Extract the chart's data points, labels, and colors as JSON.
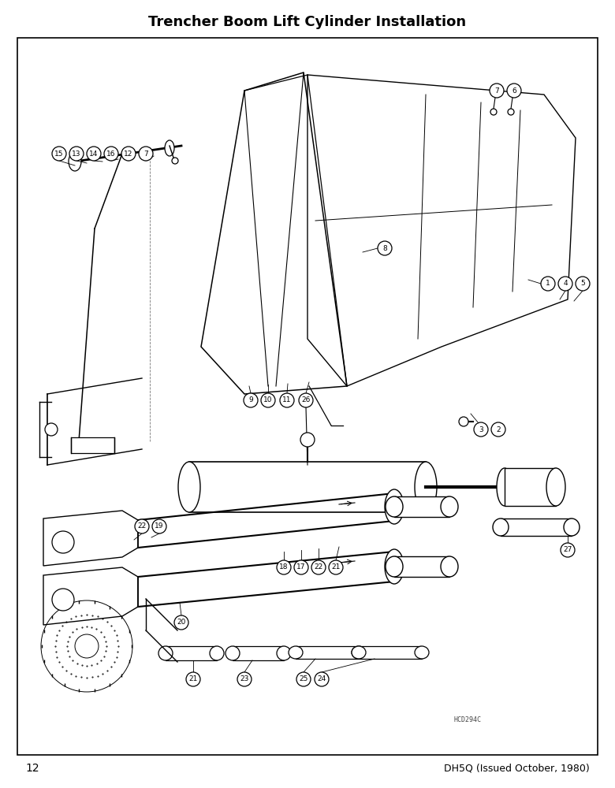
{
  "title": "Trencher Boom Lift Cylinder Installation",
  "page_number": "12",
  "doc_ref": "DH5Q (Issued October, 1980)",
  "drawing_code": "HCD294C",
  "bg_color": "#ffffff",
  "border_color": "#000000",
  "title_fontsize": 13,
  "body_fontsize": 8,
  "label_fontsize": 6.5,
  "figw": 7.8,
  "figh": 10.0,
  "dpi": 100
}
